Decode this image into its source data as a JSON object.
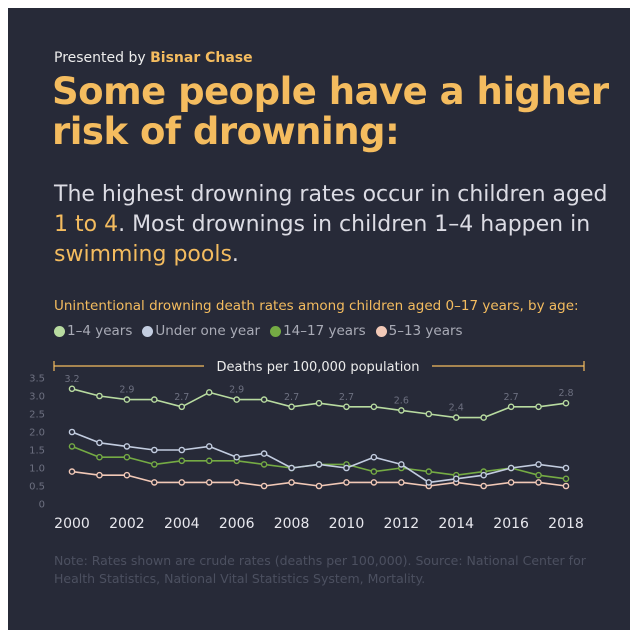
{
  "header": {
    "presented_prefix": "Presented by",
    "brand": "Bisnar Chase",
    "headline": "Some people have a higher risk of drowning:"
  },
  "lead": {
    "part1": "The highest drowning rates occur in children aged ",
    "hl1": "1 to 4",
    "part2": ". Most drownings in children 1–4 happen in ",
    "hl2": "swimming pools",
    "part3": "."
  },
  "note": "Note: Rates shown are crude rates (deaths per 100,000). Source: National Center for Health Statistics, National Vital Statistics System, Mortality.",
  "colors": {
    "accent": "#f4bc5f",
    "background": "#272a38",
    "age_1_4": "#b8dba0",
    "under_one": "#c3cde0",
    "age_14_17": "#75ab44",
    "age_5_13": "#f2c9b7"
  },
  "chart_data": {
    "type": "line",
    "title": "Unintentional drowning death rates among children aged 0–17 years, by age:",
    "ylabel": "Deaths per 100,000 population",
    "xlabel": "",
    "x": [
      2000,
      2001,
      2002,
      2003,
      2004,
      2005,
      2006,
      2007,
      2008,
      2009,
      2010,
      2011,
      2012,
      2013,
      2014,
      2015,
      2016,
      2017,
      2018
    ],
    "x_ticks": [
      "2000",
      "2002",
      "2004",
      "2006",
      "2008",
      "2010",
      "2012",
      "2014",
      "2016",
      "2018"
    ],
    "y_ticks": [
      "0",
      "0.5",
      "1.0",
      "1.5",
      "2.0",
      "2.5",
      "3.0",
      "3.5"
    ],
    "ylim": [
      0,
      3.5
    ],
    "legend_position": "top",
    "grid": false,
    "series": [
      {
        "name": "1–4 years",
        "color": "#b8dba0",
        "values": [
          3.2,
          3.0,
          2.9,
          2.9,
          2.7,
          3.1,
          2.9,
          2.9,
          2.7,
          2.8,
          2.7,
          2.7,
          2.6,
          2.5,
          2.4,
          2.4,
          2.7,
          2.7,
          2.8
        ]
      },
      {
        "name": "Under one year",
        "color": "#c3cde0",
        "values": [
          2.0,
          1.7,
          1.6,
          1.5,
          1.5,
          1.6,
          1.3,
          1.4,
          1.0,
          1.1,
          1.0,
          1.3,
          1.1,
          0.6,
          0.7,
          0.8,
          1.0,
          1.1,
          1.0
        ]
      },
      {
        "name": "14–17 years",
        "color": "#75ab44",
        "values": [
          1.6,
          1.3,
          1.3,
          1.1,
          1.2,
          1.2,
          1.2,
          1.1,
          1.0,
          1.1,
          1.1,
          0.9,
          1.0,
          0.9,
          0.8,
          0.9,
          1.0,
          0.8,
          0.7
        ]
      },
      {
        "name": "5–13 years",
        "color": "#f2c9b7",
        "values": [
          0.9,
          0.8,
          0.8,
          0.6,
          0.6,
          0.6,
          0.6,
          0.5,
          0.6,
          0.5,
          0.6,
          0.6,
          0.6,
          0.5,
          0.6,
          0.5,
          0.6,
          0.6,
          0.5
        ]
      }
    ],
    "data_labels": [
      {
        "series": 0,
        "x": 2000,
        "text": "3.2"
      },
      {
        "series": 0,
        "x": 2002,
        "text": "2.9"
      },
      {
        "series": 0,
        "x": 2004,
        "text": "2.7"
      },
      {
        "series": 0,
        "x": 2006,
        "text": "2.9"
      },
      {
        "series": 0,
        "x": 2008,
        "text": "2.7"
      },
      {
        "series": 0,
        "x": 2010,
        "text": "2.7"
      },
      {
        "series": 0,
        "x": 2012,
        "text": "2.6"
      },
      {
        "series": 0,
        "x": 2014,
        "text": "2.4"
      },
      {
        "series": 0,
        "x": 2016,
        "text": "2.7"
      },
      {
        "series": 0,
        "x": 2018,
        "text": "2.8"
      }
    ]
  }
}
